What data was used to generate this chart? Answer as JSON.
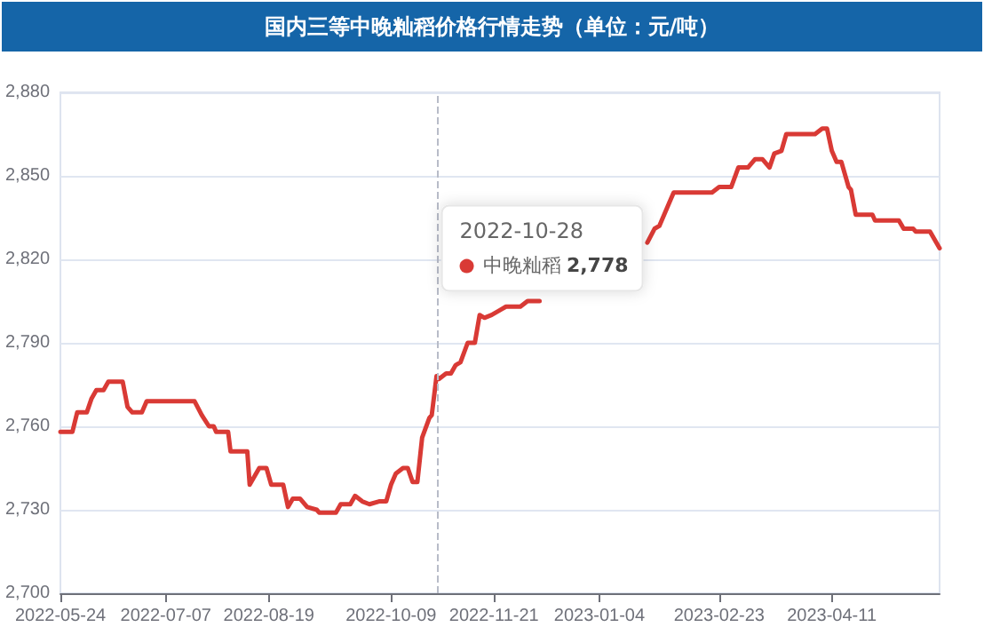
{
  "chart_data": {
    "type": "line",
    "title": "国内三等中晚籼稻价格行情走势（单位：元/吨）",
    "x": [
      "2022-05-24",
      "2022-05-29",
      "2022-05-31",
      "2022-06-04",
      "2022-06-06",
      "2022-06-08",
      "2022-06-11",
      "2022-06-13",
      "2022-06-19",
      "2022-06-21",
      "2022-06-23",
      "2022-06-27",
      "2022-06-29",
      "2022-07-19",
      "2022-07-22",
      "2022-07-25",
      "2022-07-27",
      "2022-07-28",
      "2022-08-02",
      "2022-08-03",
      "2022-08-10",
      "2022-08-11",
      "2022-08-15",
      "2022-08-18",
      "2022-08-20",
      "2022-08-25",
      "2022-08-27",
      "2022-08-29",
      "2022-09-01",
      "2022-09-04",
      "2022-09-08",
      "2022-09-09",
      "2022-09-16",
      "2022-09-18",
      "2022-09-22",
      "2022-09-24",
      "2022-09-27",
      "2022-09-30",
      "2022-10-04",
      "2022-10-07",
      "2022-10-09",
      "2022-10-11",
      "2022-10-14",
      "2022-10-16",
      "2022-10-18",
      "2022-10-20",
      "2022-10-22",
      "2022-10-25",
      "2022-10-26",
      "2022-10-28",
      "2022-10-29",
      "2022-11-01",
      "2022-11-03",
      "2022-11-05",
      "2022-11-07",
      "2022-11-10",
      "2022-11-13",
      "2022-11-15",
      "2022-11-17",
      "2022-11-20",
      "2022-11-24",
      "2022-11-26",
      "2022-12-02",
      "2022-12-05",
      "2022-12-10",
      "2022-12-12",
      "2022-12-15",
      "2022-12-17",
      "2023-01-01",
      "2023-01-24",
      "2023-01-27",
      "2023-01-29",
      "2023-02-02",
      "2023-02-04",
      "2023-02-20",
      "2023-02-23",
      "2023-02-28",
      "2023-03-03",
      "2023-03-07",
      "2023-03-10",
      "2023-03-13",
      "2023-03-16",
      "2023-03-18",
      "2023-03-21",
      "2023-03-23",
      "2023-04-04",
      "2023-04-07",
      "2023-04-09",
      "2023-04-11",
      "2023-04-13",
      "2023-04-15",
      "2023-04-18",
      "2023-04-19",
      "2023-04-21",
      "2023-04-28",
      "2023-04-29",
      "2023-05-09",
      "2023-05-11",
      "2023-05-15",
      "2023-05-16",
      "2023-05-22",
      "2023-05-26"
    ],
    "series": [
      {
        "name": "中晚籼稻",
        "color": "#d93a35",
        "values": [
          2758,
          2758,
          2765,
          2765,
          2770,
          2773,
          2773,
          2776,
          2776,
          2767,
          2765,
          2765,
          2769,
          2769,
          2764,
          2760,
          2760,
          2758,
          2758,
          2751,
          2751,
          2739,
          2745,
          2745,
          2739,
          2739,
          2731,
          2734,
          2734,
          2731,
          2730,
          2729,
          2729,
          2732,
          2732,
          2735,
          2733,
          2732,
          2733,
          2733,
          2739,
          2743,
          2745,
          2745,
          2740,
          2740,
          2756,
          2763,
          2764,
          2778,
          2777,
          2779,
          2779,
          2782,
          2783,
          2790,
          2790,
          2800,
          2799,
          2800,
          2802,
          2803,
          2803,
          2805,
          2805,
          null,
          null,
          null,
          null,
          2826,
          2831,
          2832,
          2840,
          2844,
          2844,
          2846,
          2846,
          2853,
          2853,
          2856,
          2856,
          2853,
          2858,
          2859,
          2865,
          2865,
          2867,
          2867,
          2859,
          2855,
          2855,
          2846,
          2845,
          2836,
          2836,
          2834,
          2834,
          2831,
          2831,
          2830,
          2830,
          2824
        ]
      }
    ],
    "xlim": [
      "2022-05-24",
      "2023-05-26"
    ],
    "xticks": [
      "2022-05-24",
      "2022-07-07",
      "2022-08-19",
      "2022-10-09",
      "2022-11-21",
      "2023-01-04",
      "2023-02-23",
      "2023-04-11"
    ],
    "ylim": [
      2700,
      2880
    ],
    "yticks": [
      {
        "value": 2700,
        "label": "2,700"
      },
      {
        "value": 2730,
        "label": "2,730"
      },
      {
        "value": 2760,
        "label": "2,760"
      },
      {
        "value": 2790,
        "label": "2,790"
      },
      {
        "value": 2820,
        "label": "2,820"
      },
      {
        "value": 2850,
        "label": "2,850"
      },
      {
        "value": 2880,
        "label": "2,880"
      }
    ],
    "grid": "y",
    "legend": "top",
    "marker": "none",
    "line_style": "solid",
    "ref_lines": [
      {
        "axis": "x",
        "value": "2022-10-28",
        "color": "#b8bcc8",
        "line_style": "dashed"
      }
    ],
    "annotations": [
      "2022-10-28",
      "2,778"
    ]
  }
}
